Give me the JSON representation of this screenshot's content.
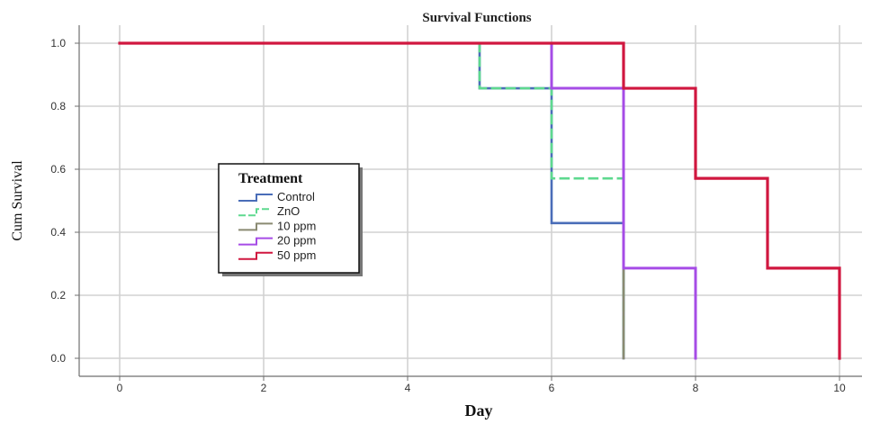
{
  "chart_data": {
    "type": "line",
    "title": "Survival Functions",
    "xlabel": "Day",
    "ylabel": "Cum Survival",
    "xlim": [
      0,
      10
    ],
    "ylim": [
      0,
      1
    ],
    "xticks": [
      0,
      2,
      4,
      6,
      8,
      10
    ],
    "xtick_labels": [
      "0",
      "2",
      "4",
      "6",
      "8",
      "10"
    ],
    "yticks": [
      0,
      0.2,
      0.4,
      0.6,
      0.8,
      1.0
    ],
    "ytick_labels": [
      "0.0",
      "0.2",
      "0.4",
      "0.6",
      "0.8",
      "1.0"
    ],
    "grid": true,
    "legend": {
      "title": "Treatment",
      "placement": "center-left"
    },
    "series": [
      {
        "name": "Control",
        "color": "#4a6db8",
        "dash": "solid",
        "x": [
          0,
          5,
          5,
          6,
          6,
          7,
          7
        ],
        "y": [
          1.0,
          1.0,
          0.857,
          0.857,
          0.429,
          0.429,
          0.0
        ]
      },
      {
        "name": "ZnO",
        "color": "#5ed98f",
        "dash": "dashed",
        "x": [
          0,
          5,
          5,
          6,
          6,
          7,
          7
        ],
        "y": [
          1.0,
          1.0,
          0.857,
          0.857,
          0.571,
          0.571,
          0.0
        ]
      },
      {
        "name": "10 ppm",
        "color": "#8a8a72",
        "dash": "solid",
        "x": [
          0,
          6,
          6,
          7,
          7
        ],
        "y": [
          1.0,
          1.0,
          0.857,
          0.857,
          0.0
        ]
      },
      {
        "name": "20 ppm",
        "color": "#a64ce6",
        "dash": "solid",
        "x": [
          0,
          6,
          6,
          7,
          7,
          8,
          8
        ],
        "y": [
          1.0,
          1.0,
          0.857,
          0.857,
          0.286,
          0.286,
          0.0
        ]
      },
      {
        "name": "50 ppm",
        "color": "#d0173f",
        "dash": "solid",
        "x": [
          0,
          7,
          7,
          8,
          8,
          9,
          9,
          10,
          10
        ],
        "y": [
          1.0,
          1.0,
          0.857,
          0.857,
          0.571,
          0.571,
          0.286,
          0.286,
          0.0
        ]
      }
    ]
  }
}
